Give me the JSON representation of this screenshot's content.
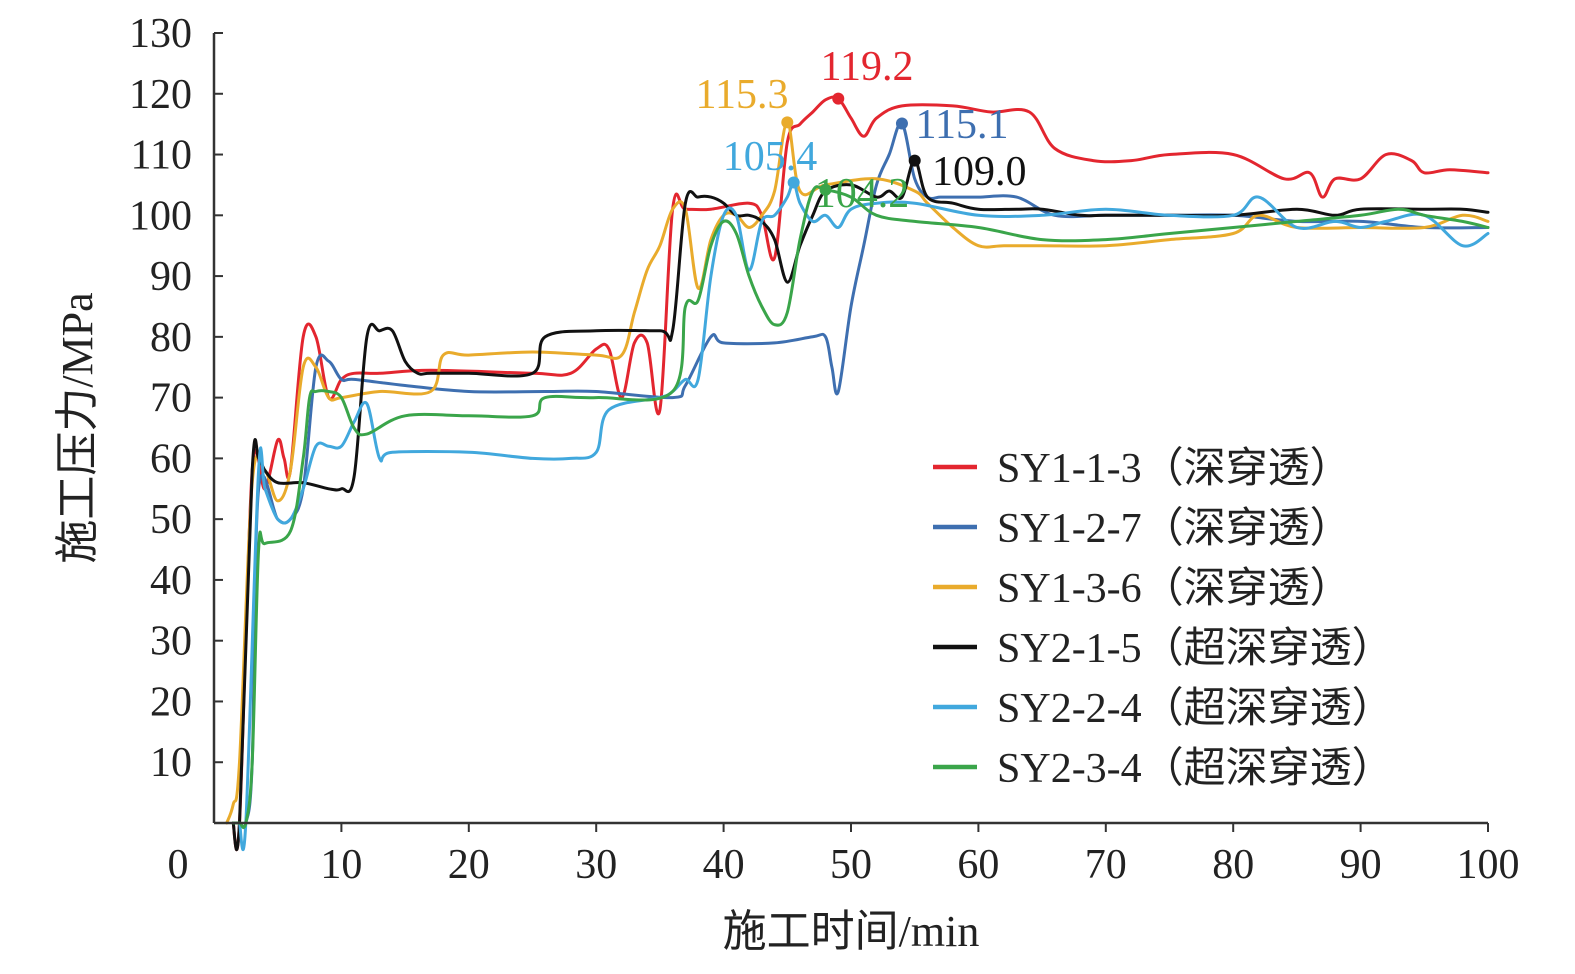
{
  "chart_data": {
    "type": "line",
    "title": "",
    "xlabel": "施工时间/min",
    "ylabel": "施工压力/MPa",
    "xlim": [
      0,
      100
    ],
    "ylim": [
      0,
      130
    ],
    "x_ticks": [
      "0",
      "10",
      "20",
      "30",
      "40",
      "50",
      "60",
      "70",
      "80",
      "90",
      "100"
    ],
    "y_ticks": [
      "10",
      "20",
      "30",
      "40",
      "50",
      "60",
      "70",
      "80",
      "90",
      "100",
      "110",
      "120",
      "130"
    ],
    "grid": false,
    "legend_position": "bottom-right",
    "series": [
      {
        "name": "SY1-1-3（深穿透）",
        "color": "#e3262f",
        "x": [
          1.5,
          2,
          3,
          4,
          5,
          5.5,
          6,
          7,
          8,
          9,
          10,
          11,
          13,
          17,
          25,
          28,
          30,
          31,
          32,
          33,
          34,
          35,
          36,
          37,
          39,
          42,
          43,
          44,
          45,
          46,
          47,
          48,
          49,
          50,
          51,
          52,
          54,
          58,
          61,
          64,
          66,
          69,
          72,
          75,
          80,
          84,
          86,
          87,
          88,
          90,
          92,
          94,
          95,
          97,
          100
        ],
        "y": [
          0,
          0,
          58,
          55,
          63,
          60,
          58,
          80,
          80,
          70,
          73,
          74,
          74,
          74.5,
          74,
          74,
          78,
          78,
          70,
          79,
          79,
          68,
          101,
          101,
          101,
          102,
          100,
          93,
          112,
          115,
          117,
          119,
          119.2,
          116,
          113,
          116,
          118,
          118,
          117,
          117,
          111,
          109,
          109,
          110,
          110,
          106,
          107,
          103,
          106,
          106,
          110,
          109,
          107,
          107.5,
          107
        ]
      },
      {
        "name": "SY1-2-7（深穿透）",
        "color": "#3e6fb0",
        "x": [
          1.5,
          2,
          2.5,
          3,
          3.5,
          5,
          6,
          7,
          8,
          9,
          10,
          11,
          15,
          20,
          26,
          30,
          36,
          37,
          39,
          40,
          44,
          47,
          48,
          48.5,
          49,
          50,
          51,
          52,
          53,
          54,
          55,
          56,
          57,
          58,
          60,
          63,
          66,
          70,
          75,
          80,
          85,
          90,
          95,
          100
        ],
        "y": [
          0,
          0,
          0,
          10,
          55,
          50,
          50,
          55,
          75,
          76,
          73,
          73,
          72,
          71,
          71,
          71,
          70,
          72,
          80,
          79,
          79,
          80,
          80,
          75,
          71,
          85,
          95,
          105,
          110,
          115.1,
          106,
          103,
          103,
          103,
          103,
          103,
          100,
          100,
          100,
          100,
          99,
          99,
          98,
          98
        ]
      },
      {
        "name": "SY1-3-6（深穿透）",
        "color": "#e9ab2c",
        "x": [
          1,
          1.5,
          2,
          3,
          4,
          5,
          6,
          7,
          8,
          9,
          10,
          13,
          17,
          18,
          20,
          25,
          30,
          32,
          33,
          34,
          35,
          36,
          37,
          38,
          39,
          40,
          41,
          42,
          43,
          44,
          45,
          46,
          48,
          52,
          55,
          56,
          58,
          60,
          62,
          65,
          70,
          75,
          80,
          82,
          85,
          90,
          95,
          98,
          100
        ],
        "y": [
          0,
          3,
          10,
          56,
          58,
          53,
          58,
          75,
          75,
          70,
          70,
          71,
          71,
          77,
          77,
          77.5,
          77,
          77,
          84,
          91,
          95,
          101,
          101,
          88,
          96,
          100,
          100,
          98,
          100,
          104,
          115.3,
          104,
          105,
          106,
          104,
          102,
          98,
          95,
          95,
          95,
          95,
          96,
          97,
          100,
          98,
          98,
          98,
          100,
          99
        ]
      },
      {
        "name": "SY2-1-5（超深穿透）",
        "color": "#111111",
        "x": [
          1.5,
          2,
          3,
          3.5,
          4,
          5,
          7,
          9,
          10,
          11,
          12,
          13,
          14,
          15,
          16,
          17,
          20,
          25,
          26,
          30,
          35,
          36,
          37,
          38,
          39,
          40,
          41,
          42,
          43,
          44,
          45,
          46,
          47,
          48,
          50,
          52,
          53,
          54,
          55,
          56,
          58,
          60,
          63,
          65,
          68,
          70,
          75,
          80,
          85,
          88,
          90,
          95,
          98,
          100
        ],
        "y": [
          0,
          0,
          58,
          60,
          58,
          56,
          56,
          55,
          55,
          57,
          80,
          81,
          81,
          76,
          74,
          74,
          74,
          74,
          80,
          81,
          81,
          81,
          102,
          103,
          103,
          102,
          100,
          100,
          99,
          96,
          89,
          95,
          100,
          104,
          105,
          103,
          104,
          103,
          109,
          103,
          102,
          101,
          101,
          101,
          100,
          100,
          100,
          100,
          101,
          100,
          101,
          101,
          101,
          100.5
        ]
      },
      {
        "name": "SY2-2-4（超深穿透）",
        "color": "#41a8dd",
        "x": [
          2,
          2.5,
          3.5,
          4,
          5,
          6,
          7,
          8,
          9,
          10,
          11,
          12,
          13,
          14,
          20,
          25,
          28,
          30,
          31,
          35,
          36,
          37,
          38,
          39,
          40,
          41,
          42,
          43,
          44,
          45,
          45.5,
          46,
          47,
          48,
          49,
          50,
          52,
          55,
          60,
          65,
          70,
          75,
          80,
          82,
          85,
          88,
          90,
          92,
          95,
          98,
          100
        ],
        "y": [
          0,
          0,
          58,
          55,
          50,
          50,
          55,
          62,
          62,
          62,
          66,
          69,
          60,
          61,
          61,
          60,
          60,
          61,
          68,
          70,
          71,
          73,
          73,
          90,
          100,
          100,
          91,
          99,
          100,
          103,
          105.4,
          102,
          99,
          100,
          98,
          101,
          102,
          102,
          100,
          100,
          101,
          100,
          100,
          103,
          98,
          99,
          98,
          99,
          100,
          95,
          97
        ]
      },
      {
        "name": "SY2-3-4（超深穿透）",
        "color": "#3aa54a",
        "x": [
          1.5,
          2,
          2.5,
          3,
          3.5,
          4,
          6,
          7,
          7.5,
          8,
          9,
          10,
          11,
          12,
          15,
          20,
          25,
          26,
          30,
          36,
          37,
          38,
          39,
          40,
          41,
          42,
          43,
          44,
          45,
          46,
          47,
          48,
          50,
          52,
          55,
          60,
          65,
          70,
          75,
          80,
          85,
          90,
          93,
          95,
          98,
          100
        ],
        "y": [
          0,
          0,
          0,
          10,
          45,
          46,
          48,
          60,
          70,
          71,
          71,
          70,
          65,
          64,
          67,
          67,
          67,
          70,
          70,
          71,
          85,
          86,
          95,
          99,
          97,
          90,
          85,
          82,
          84,
          96,
          104,
          104.2,
          103,
          100,
          99,
          98,
          96,
          96,
          97,
          98,
          99,
          100,
          101,
          100,
          99,
          98
        ]
      }
    ],
    "annotations": [
      {
        "text": "119.2",
        "x": 49,
        "y": 119.2,
        "color": "#e3262f"
      },
      {
        "text": "115.3",
        "x": 45,
        "y": 115.3,
        "color": "#e9ab2c"
      },
      {
        "text": "115.1",
        "x": 54,
        "y": 115.1,
        "color": "#3e6fb0"
      },
      {
        "text": "105.4",
        "x": 45.5,
        "y": 105.4,
        "color": "#41a8dd"
      },
      {
        "text": "104.2",
        "x": 48,
        "y": 104.2,
        "color": "#3aa54a"
      },
      {
        "text": "109.0",
        "x": 55,
        "y": 109.0,
        "color": "#111111"
      }
    ]
  }
}
